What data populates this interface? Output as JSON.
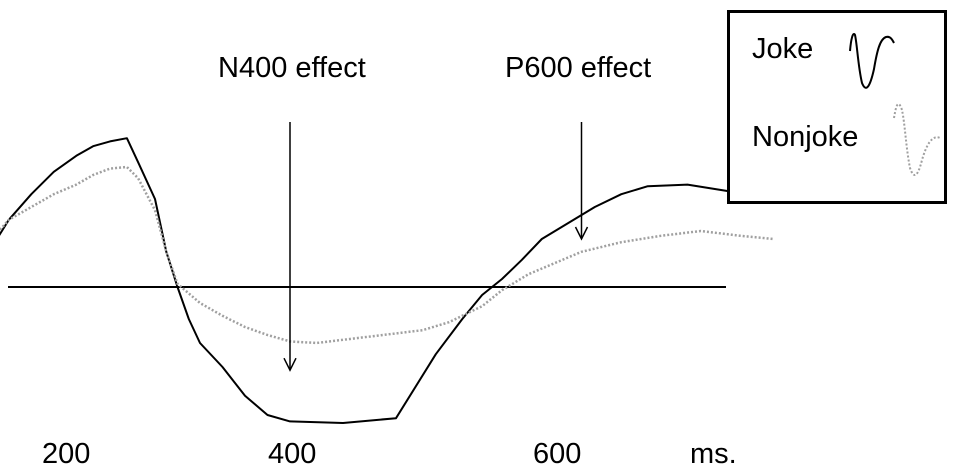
{
  "chart_data": {
    "type": "line",
    "xlabel": "ms.",
    "ylabel": "",
    "x_ticks": [
      200,
      400,
      600
    ],
    "xlim": [
      110,
      670
    ],
    "ylim": [
      -1.0,
      1.0
    ],
    "grid": false,
    "legend_position": "top-right",
    "annotations": [
      {
        "text": "N400 effect",
        "x": 400,
        "y_from": 0.8,
        "y_to": -0.52
      },
      {
        "text": "P600 effect",
        "x": 620,
        "y_from": 0.8,
        "y_to": 0.3
      }
    ],
    "series": [
      {
        "name": "Joke",
        "style": "solid",
        "color": "#000000",
        "x": [
          110,
          120,
          135,
          150,
          170,
          190,
          210,
          225,
          240,
          255,
          265,
          280,
          290,
          300,
          310,
          320,
          340,
          360,
          380,
          400,
          440,
          480,
          510,
          530,
          545,
          560,
          575,
          590,
          610,
          630,
          650,
          670,
          700,
          730,
          755
        ],
        "y": [
          -0.08,
          0.05,
          0.25,
          0.42,
          0.58,
          0.72,
          0.82,
          0.88,
          0.91,
          0.93,
          0.78,
          0.55,
          0.22,
          0.0,
          -0.2,
          -0.35,
          -0.5,
          -0.68,
          -0.8,
          -0.84,
          -0.85,
          -0.82,
          -0.42,
          -0.2,
          -0.05,
          0.05,
          0.17,
          0.3,
          0.4,
          0.5,
          0.58,
          0.63,
          0.64,
          0.6,
          0.57
        ]
      },
      {
        "name": "Nonjoke",
        "style": "dotted",
        "color": "#a0a0a0",
        "x": [
          110,
          120,
          135,
          150,
          170,
          190,
          210,
          225,
          240,
          255,
          265,
          280,
          290,
          300,
          320,
          340,
          360,
          380,
          400,
          420,
          440,
          470,
          500,
          520,
          545,
          560,
          580,
          600,
          620,
          650,
          680,
          710,
          740,
          765
        ],
        "y": [
          0.0,
          0.12,
          0.3,
          0.42,
          0.5,
          0.58,
          0.64,
          0.7,
          0.74,
          0.75,
          0.68,
          0.48,
          0.22,
          0.02,
          -0.1,
          -0.18,
          -0.25,
          -0.3,
          -0.34,
          -0.35,
          -0.33,
          -0.3,
          -0.27,
          -0.22,
          -0.12,
          -0.02,
          0.08,
          0.15,
          0.22,
          0.28,
          0.32,
          0.35,
          0.32,
          0.3
        ]
      }
    ]
  },
  "labels": {
    "n400": "N400 effect",
    "p600": "P600 effect",
    "tick_200": "200",
    "tick_400": "400",
    "tick_600": "600",
    "unit": "ms."
  },
  "legend": {
    "joke": "Joke",
    "nonjoke": "Nonjoke"
  }
}
